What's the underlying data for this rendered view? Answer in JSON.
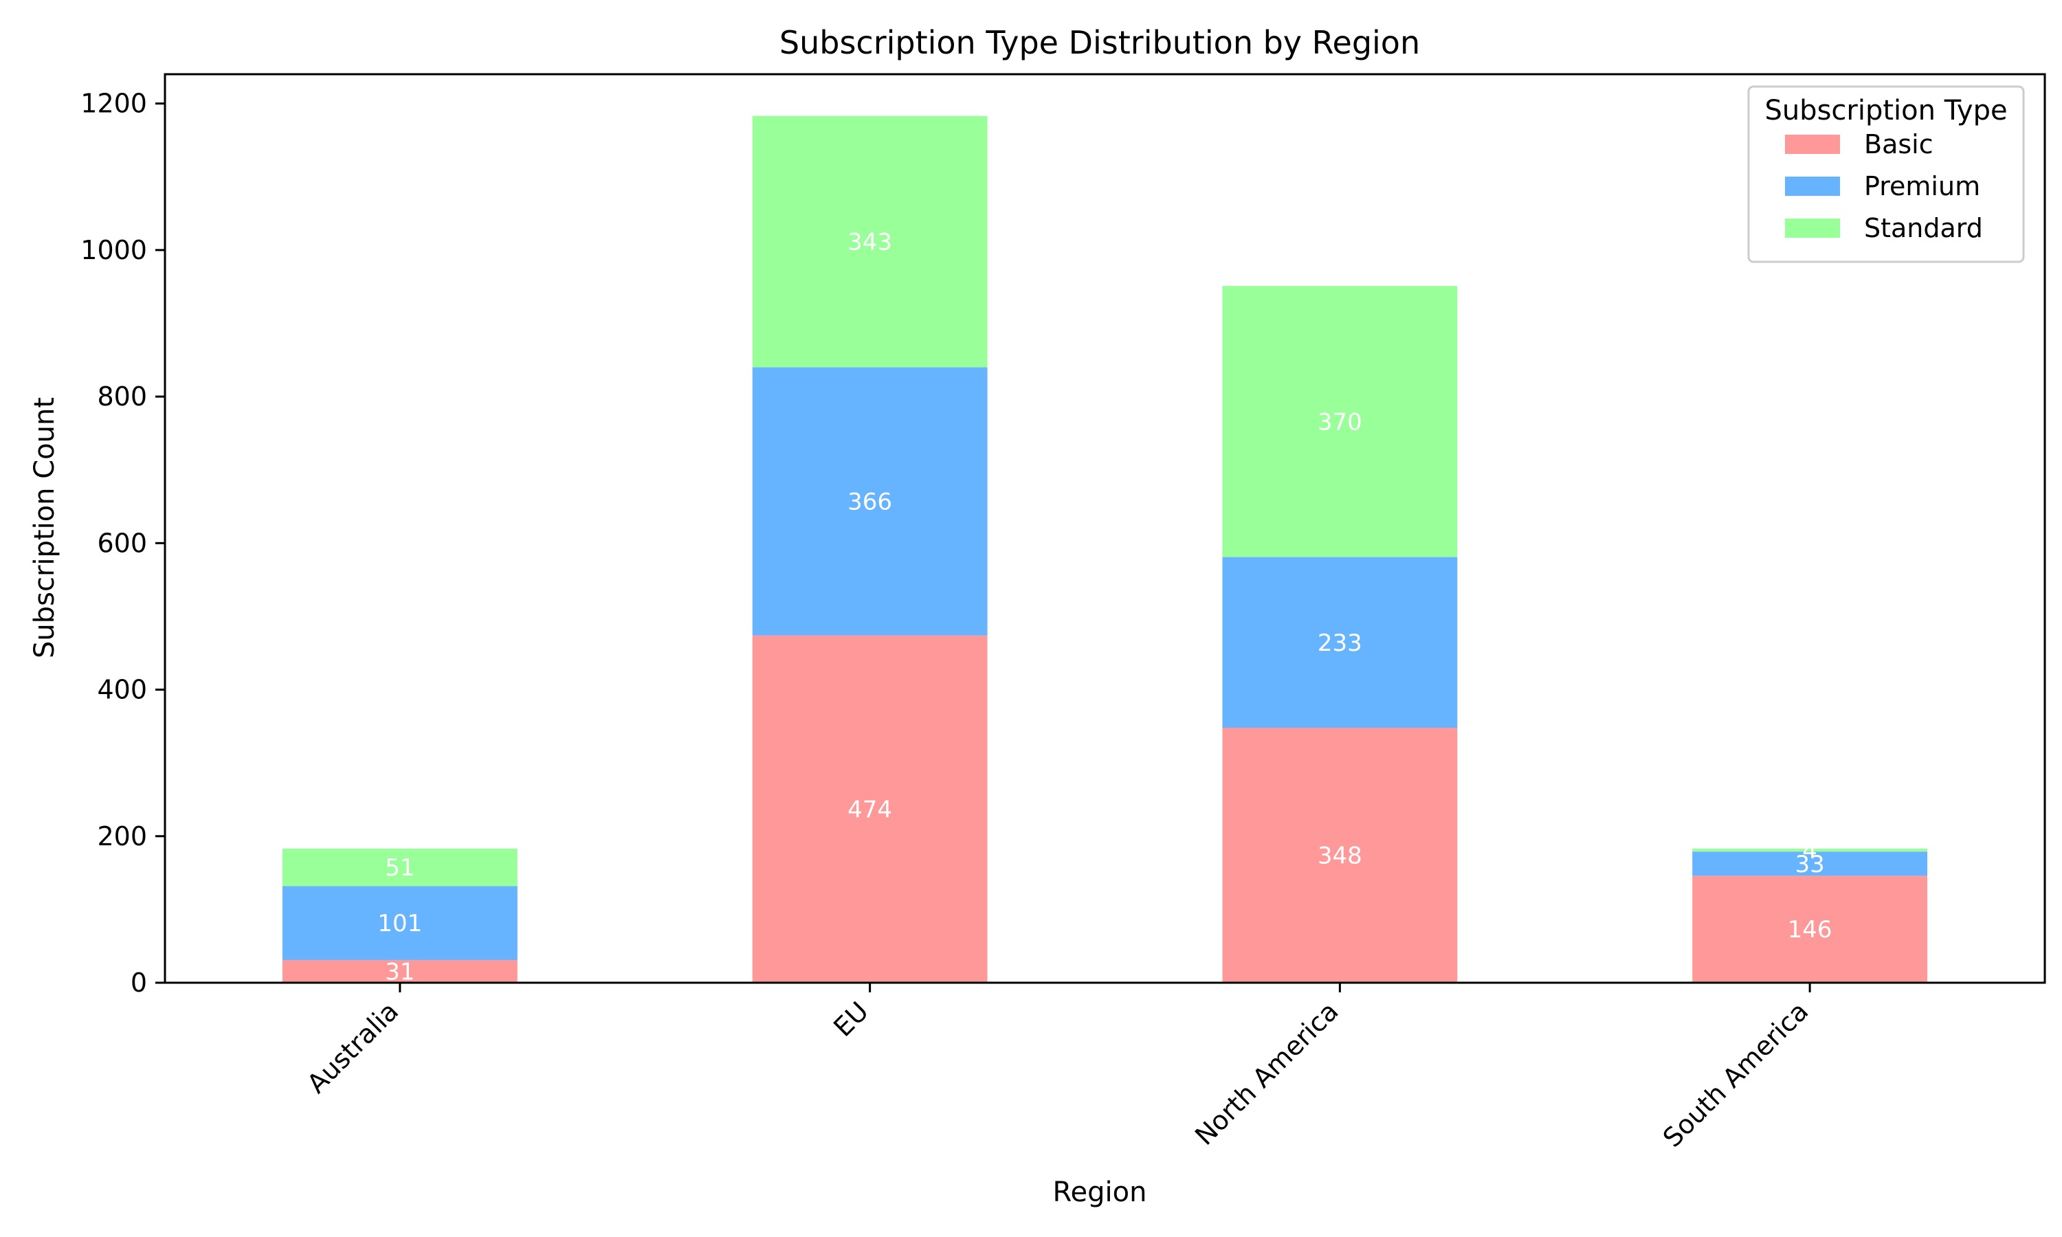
{
  "chart_data": {
    "type": "bar",
    "stacked": true,
    "title": "Subscription Type Distribution by Region",
    "xlabel": "Region",
    "ylabel": "Subscription Count",
    "ylim": [
      0,
      1240
    ],
    "yticks": [
      0,
      200,
      400,
      600,
      800,
      1000,
      1200
    ],
    "categories": [
      "Australia",
      "EU",
      "North America",
      "South America"
    ],
    "series": [
      {
        "name": "Basic",
        "color": "#ff9999",
        "values": [
          31,
          474,
          348,
          146
        ]
      },
      {
        "name": "Premium",
        "color": "#66b3ff",
        "values": [
          101,
          366,
          233,
          33
        ]
      },
      {
        "name": "Standard",
        "color": "#99ff99",
        "values": [
          51,
          343,
          370,
          4
        ]
      }
    ],
    "legend": {
      "title": "Subscription Type",
      "position": "top-right"
    },
    "grid": false
  }
}
